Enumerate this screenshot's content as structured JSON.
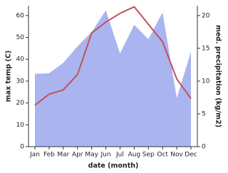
{
  "chart_data": {
    "type": "combo",
    "x_label": "date (month)",
    "y_label": "max temp (C)",
    "y2_label": "med. precipitation (kg/m2)",
    "categories": [
      "Jan",
      "Feb",
      "Mar",
      "Apr",
      "May",
      "Jun",
      "Jul",
      "Aug",
      "Sep",
      "Oct",
      "Nov",
      "Dec"
    ],
    "series": [
      {
        "name": "med. precipitation",
        "type": "area",
        "axis": "y2",
        "color": "#aab5f0",
        "values": [
          11.1,
          11.2,
          12.8,
          15.3,
          17.5,
          20.8,
          14.2,
          18.6,
          16.4,
          20.5,
          7.4,
          14.5
        ]
      },
      {
        "name": "max temp",
        "type": "line",
        "axis": "y",
        "color": "#c0525a",
        "values": [
          19,
          24,
          26,
          33,
          52,
          57,
          61,
          64,
          56,
          48,
          31,
          22
        ]
      }
    ],
    "ylim": [
      0,
      64.5
    ],
    "yticks": [
      0,
      10,
      20,
      30,
      40,
      50,
      60
    ],
    "y2lim": [
      0,
      21.5
    ],
    "y2ticks": [
      0,
      5,
      10,
      15,
      20
    ]
  }
}
